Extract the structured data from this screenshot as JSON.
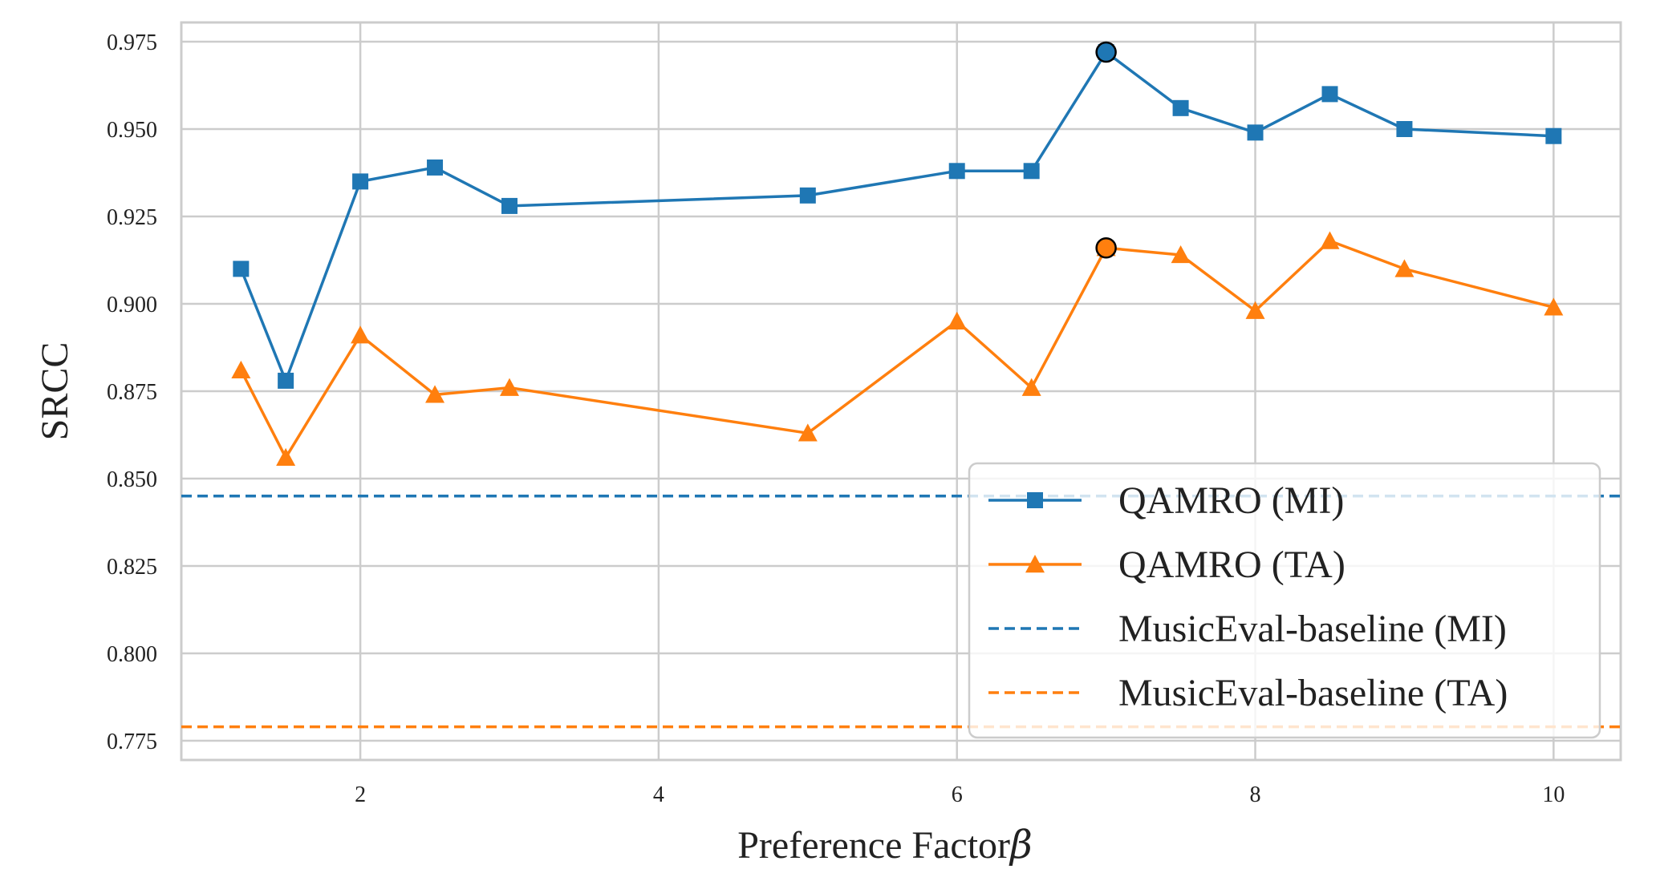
{
  "colors": {
    "mi": "#1f77b4",
    "ta": "#ff7f0e",
    "grid": "#cccccc",
    "frame": "#cccccc"
  },
  "chart_data": {
    "type": "line",
    "xlabel": "Preference Factor",
    "xlabel_symbol": "β",
    "ylabel": "SRCC",
    "xlim": [
      0.8,
      10.45
    ],
    "ylim": [
      0.7695,
      0.9805
    ],
    "x_ticks": [
      2,
      4,
      6,
      8,
      10
    ],
    "y_ticks": [
      0.775,
      0.8,
      0.825,
      0.85,
      0.875,
      0.9,
      0.925,
      0.95,
      0.975
    ],
    "y_tick_labels": [
      "0.775",
      "0.800",
      "0.825",
      "0.850",
      "0.875",
      "0.900",
      "0.925",
      "0.950",
      "0.975"
    ],
    "grid": true,
    "legend_position": "bottom-right",
    "series": [
      {
        "name": "QAMRO (MI)",
        "kind": "line",
        "marker": "square",
        "color": "#1f77b4",
        "x": [
          1.2,
          1.5,
          2,
          2.5,
          3,
          5,
          6,
          6.5,
          7,
          7.5,
          8,
          8.5,
          9,
          10
        ],
        "y": [
          0.91,
          0.878,
          0.935,
          0.939,
          0.928,
          0.931,
          0.938,
          0.938,
          0.972,
          0.956,
          0.949,
          0.96,
          0.95,
          0.948
        ],
        "highlight": {
          "x": 7,
          "y": 0.972
        }
      },
      {
        "name": "QAMRO (TA)",
        "kind": "line",
        "marker": "triangle",
        "color": "#ff7f0e",
        "x": [
          1.2,
          1.5,
          2,
          2.5,
          3,
          5,
          6,
          6.5,
          7,
          7.5,
          8,
          8.5,
          9,
          10
        ],
        "y": [
          0.881,
          0.856,
          0.891,
          0.874,
          0.876,
          0.863,
          0.895,
          0.876,
          0.916,
          0.914,
          0.898,
          0.918,
          0.91,
          0.899
        ],
        "highlight": {
          "x": 7,
          "y": 0.916
        }
      },
      {
        "name": "MusicEval-baseline (MI)",
        "kind": "hline",
        "color": "#1f77b4",
        "y": 0.845
      },
      {
        "name": "MusicEval-baseline (TA)",
        "kind": "hline",
        "color": "#ff7f0e",
        "y": 0.779
      }
    ]
  }
}
